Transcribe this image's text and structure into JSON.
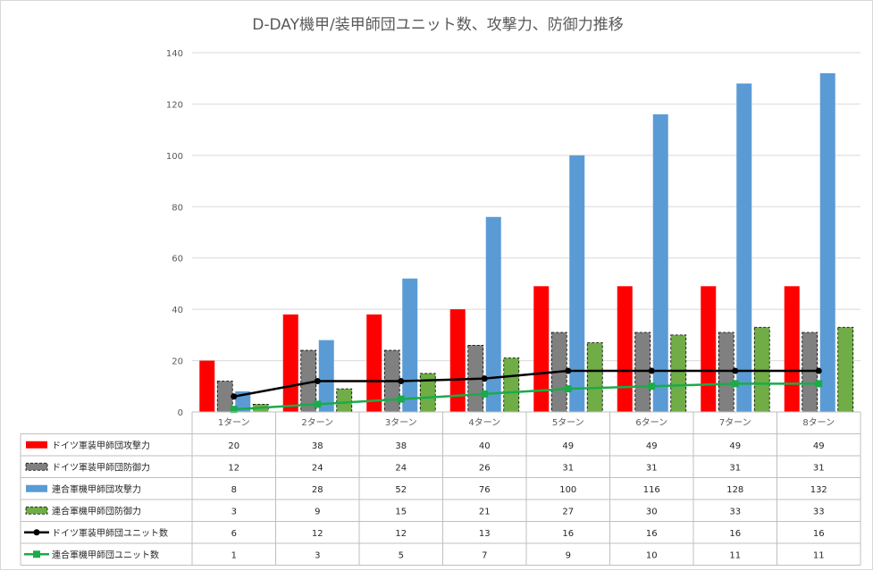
{
  "chart_data": {
    "type": "bar",
    "title": "D-DAY機甲/装甲師団ユニット数、攻撃力、防御力推移",
    "categories": [
      "1ターン",
      "2ターン",
      "3ターン",
      "4ターン",
      "5ターン",
      "6ターン",
      "7ターン",
      "8ターン"
    ],
    "ylim": [
      0,
      140
    ],
    "yticks": [
      0,
      20,
      40,
      60,
      80,
      100,
      120,
      140
    ],
    "grid": true,
    "legend": "data-table",
    "series": [
      {
        "name": "ドイツ軍装甲師団攻撃力",
        "kind": "bar",
        "color": "#ff0000",
        "values": [
          20,
          38,
          38,
          40,
          49,
          49,
          49,
          49
        ]
      },
      {
        "name": "ドイツ軍装甲師団防御力",
        "kind": "bar",
        "color": "#808080",
        "dashed": true,
        "values": [
          12,
          24,
          24,
          26,
          31,
          31,
          31,
          31
        ]
      },
      {
        "name": "連合軍機甲師団攻撃力",
        "kind": "bar",
        "color": "#5b9bd5",
        "values": [
          8,
          28,
          52,
          76,
          100,
          116,
          128,
          132
        ]
      },
      {
        "name": "連合軍機甲師団防御力",
        "kind": "bar",
        "color": "#70ad47",
        "dashed": true,
        "values": [
          3,
          9,
          15,
          21,
          27,
          30,
          33,
          33
        ]
      },
      {
        "name": "ドイツ軍装甲師団ユニット数",
        "kind": "line",
        "marker": "circle",
        "color": "#000000",
        "values": [
          6,
          12,
          12,
          13,
          16,
          16,
          16,
          16
        ]
      },
      {
        "name": "連合軍機甲師団ユニット数",
        "kind": "line",
        "marker": "square",
        "color": "#1aab4a",
        "values": [
          1,
          3,
          5,
          7,
          9,
          10,
          11,
          11
        ]
      }
    ]
  }
}
